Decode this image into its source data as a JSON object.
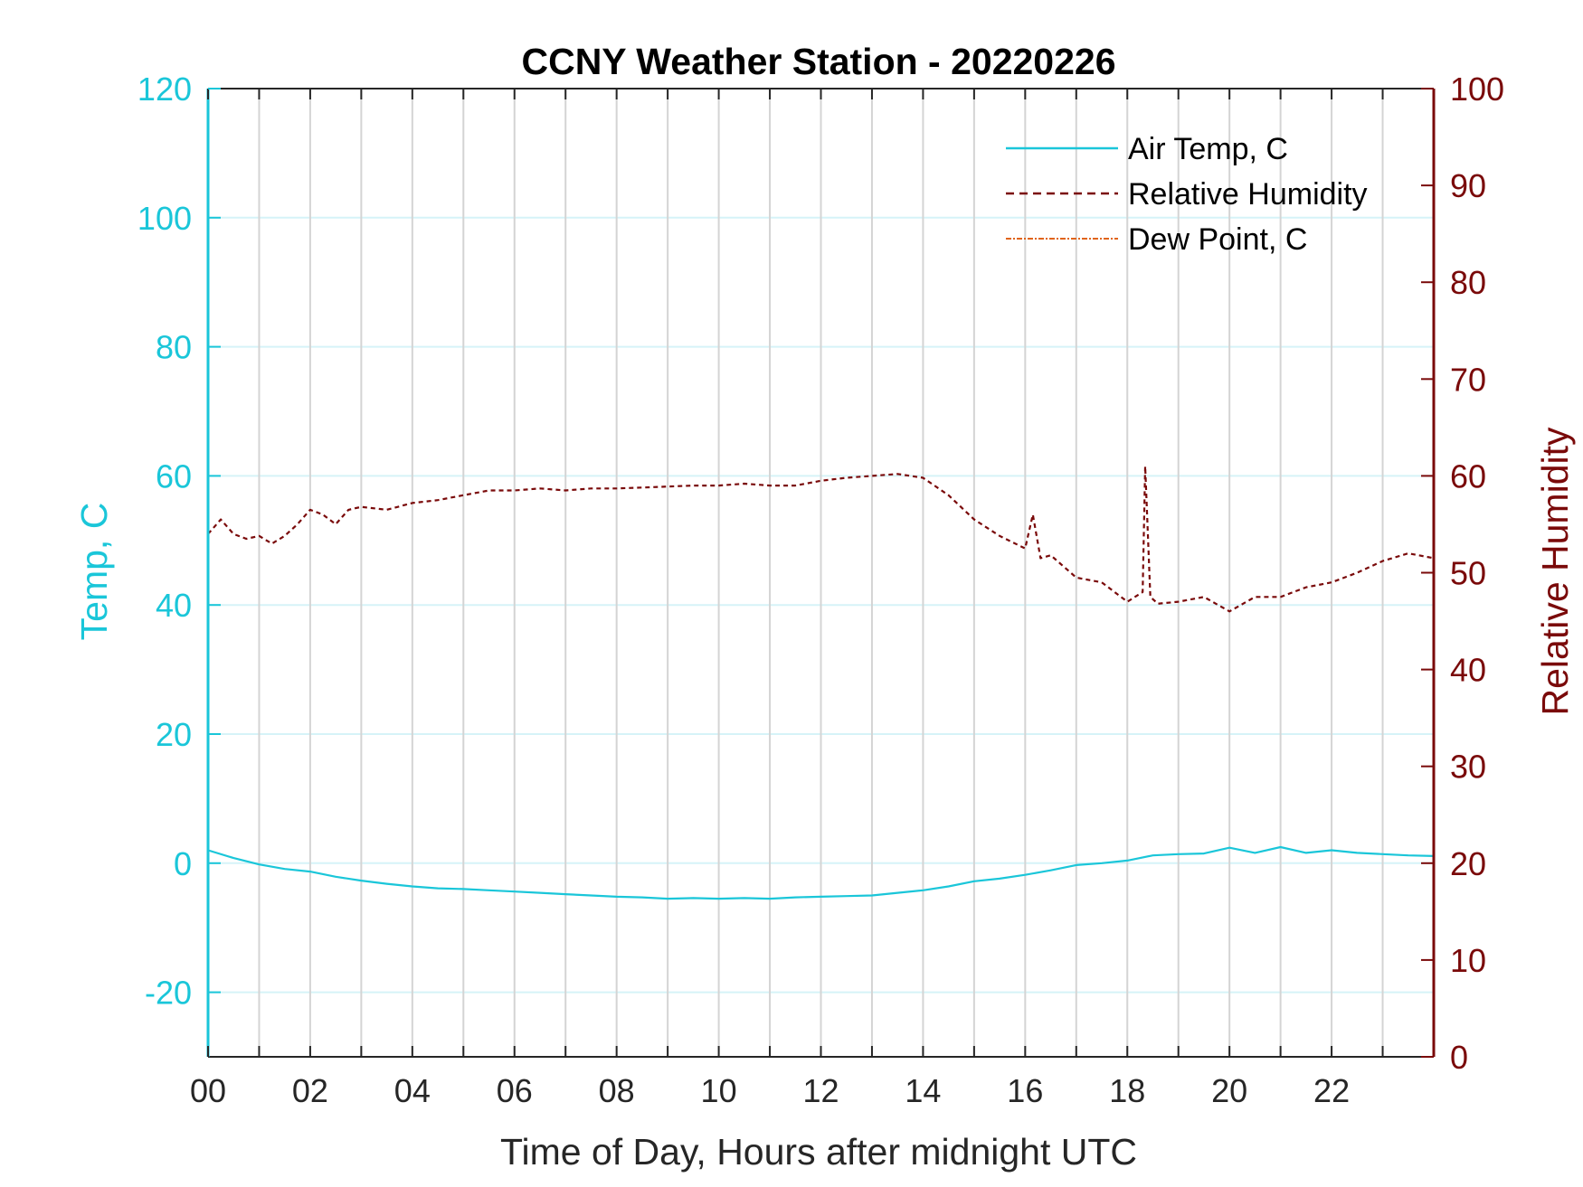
{
  "chart_data": {
    "type": "line",
    "title": "CCNY Weather Station - 20220226",
    "xlabel": "Time of Day, Hours after midnight UTC",
    "ylabel_left": "Temp, C",
    "ylabel_right": "Relative Humidity",
    "xlim": [
      0,
      24
    ],
    "ylim_left": [
      -30,
      120
    ],
    "ylim_right": [
      0,
      100
    ],
    "x_ticks": [
      0,
      2,
      4,
      6,
      8,
      10,
      12,
      14,
      16,
      18,
      20,
      22
    ],
    "x_tick_labels": [
      "00",
      "02",
      "04",
      "06",
      "08",
      "10",
      "12",
      "14",
      "16",
      "18",
      "20",
      "22"
    ],
    "y_left_ticks": [
      -20,
      0,
      20,
      40,
      60,
      80,
      100,
      120
    ],
    "y_left_tick_labels": [
      "-20",
      "0",
      "20",
      "40",
      "60",
      "80",
      "100",
      "120"
    ],
    "y_right_ticks": [
      0,
      10,
      20,
      30,
      40,
      50,
      60,
      70,
      80,
      90,
      100
    ],
    "y_right_tick_labels": [
      "0",
      "10",
      "20",
      "30",
      "40",
      "50",
      "60",
      "70",
      "80",
      "90",
      "100"
    ],
    "grid": true,
    "legend_position": "top-right",
    "colors": {
      "temp": "#1ac6d9",
      "humidity": "#7a0a0a",
      "dewpoint": "#e0641a",
      "grid_x": "#d4d4d4",
      "grid_y": "#d6f3f8"
    },
    "series": [
      {
        "name": "Air Temp, C",
        "axis": "left",
        "style": "solid",
        "x": [
          0,
          0.5,
          1,
          1.5,
          2,
          2.5,
          3,
          3.5,
          4,
          4.5,
          5,
          5.5,
          6,
          6.5,
          7,
          7.5,
          8,
          8.5,
          9,
          9.5,
          10,
          10.5,
          11,
          11.5,
          12,
          12.5,
          13,
          13.5,
          14,
          14.5,
          15,
          15.5,
          16,
          16.5,
          17,
          17.5,
          18,
          18.5,
          19,
          19.5,
          20,
          20.5,
          21,
          21.5,
          22,
          22.5,
          23,
          23.5,
          24
        ],
        "y": [
          2.0,
          0.8,
          -0.2,
          -0.9,
          -1.3,
          -2.1,
          -2.7,
          -3.2,
          -3.6,
          -3.9,
          -4.0,
          -4.2,
          -4.4,
          -4.6,
          -4.8,
          -5.0,
          -5.2,
          -5.3,
          -5.5,
          -5.4,
          -5.5,
          -5.4,
          -5.5,
          -5.3,
          -5.2,
          -5.1,
          -5.0,
          -4.6,
          -4.2,
          -3.6,
          -2.8,
          -2.4,
          -1.8,
          -1.1,
          -0.3,
          0.0,
          0.4,
          1.2,
          1.4,
          1.5,
          2.4,
          1.6,
          2.5,
          1.6,
          2.0,
          1.6,
          1.4,
          1.2,
          1.1
        ]
      },
      {
        "name": "Relative Humidity",
        "axis": "right",
        "style": "dashed",
        "x": [
          0,
          0.25,
          0.5,
          0.75,
          1,
          1.25,
          1.5,
          1.75,
          2,
          2.25,
          2.5,
          2.75,
          3,
          3.5,
          4,
          4.5,
          5,
          5.5,
          6,
          6.5,
          7,
          7.5,
          8,
          8.5,
          9,
          9.5,
          10,
          10.5,
          11,
          11.5,
          12,
          12.5,
          13,
          13.5,
          14,
          14.5,
          15,
          15.5,
          16,
          16.15,
          16.3,
          16.5,
          17,
          17.5,
          18,
          18.3,
          18.35,
          18.45,
          18.6,
          19,
          19.5,
          20,
          20.5,
          21,
          21.5,
          22,
          22.5,
          23,
          23.5,
          24
        ],
        "y": [
          54.0,
          55.5,
          54.0,
          53.5,
          53.8,
          53.0,
          53.8,
          55.0,
          56.5,
          56.0,
          55.0,
          56.5,
          56.8,
          56.5,
          57.2,
          57.5,
          58.0,
          58.5,
          58.5,
          58.7,
          58.5,
          58.7,
          58.7,
          58.8,
          58.9,
          59.0,
          59.0,
          59.2,
          59.0,
          59.0,
          59.5,
          59.8,
          60.0,
          60.2,
          59.8,
          58.0,
          55.5,
          53.8,
          52.5,
          56.0,
          51.5,
          51.8,
          49.5,
          49.0,
          47.0,
          48.0,
          61.0,
          47.5,
          46.8,
          47.0,
          47.5,
          46.0,
          47.5,
          47.5,
          48.5,
          49.0,
          50.0,
          51.2,
          52.0,
          51.5
        ]
      },
      {
        "name": "Dew Point, C",
        "axis": "left",
        "style": "dashdot",
        "x": [],
        "y": []
      }
    ]
  }
}
